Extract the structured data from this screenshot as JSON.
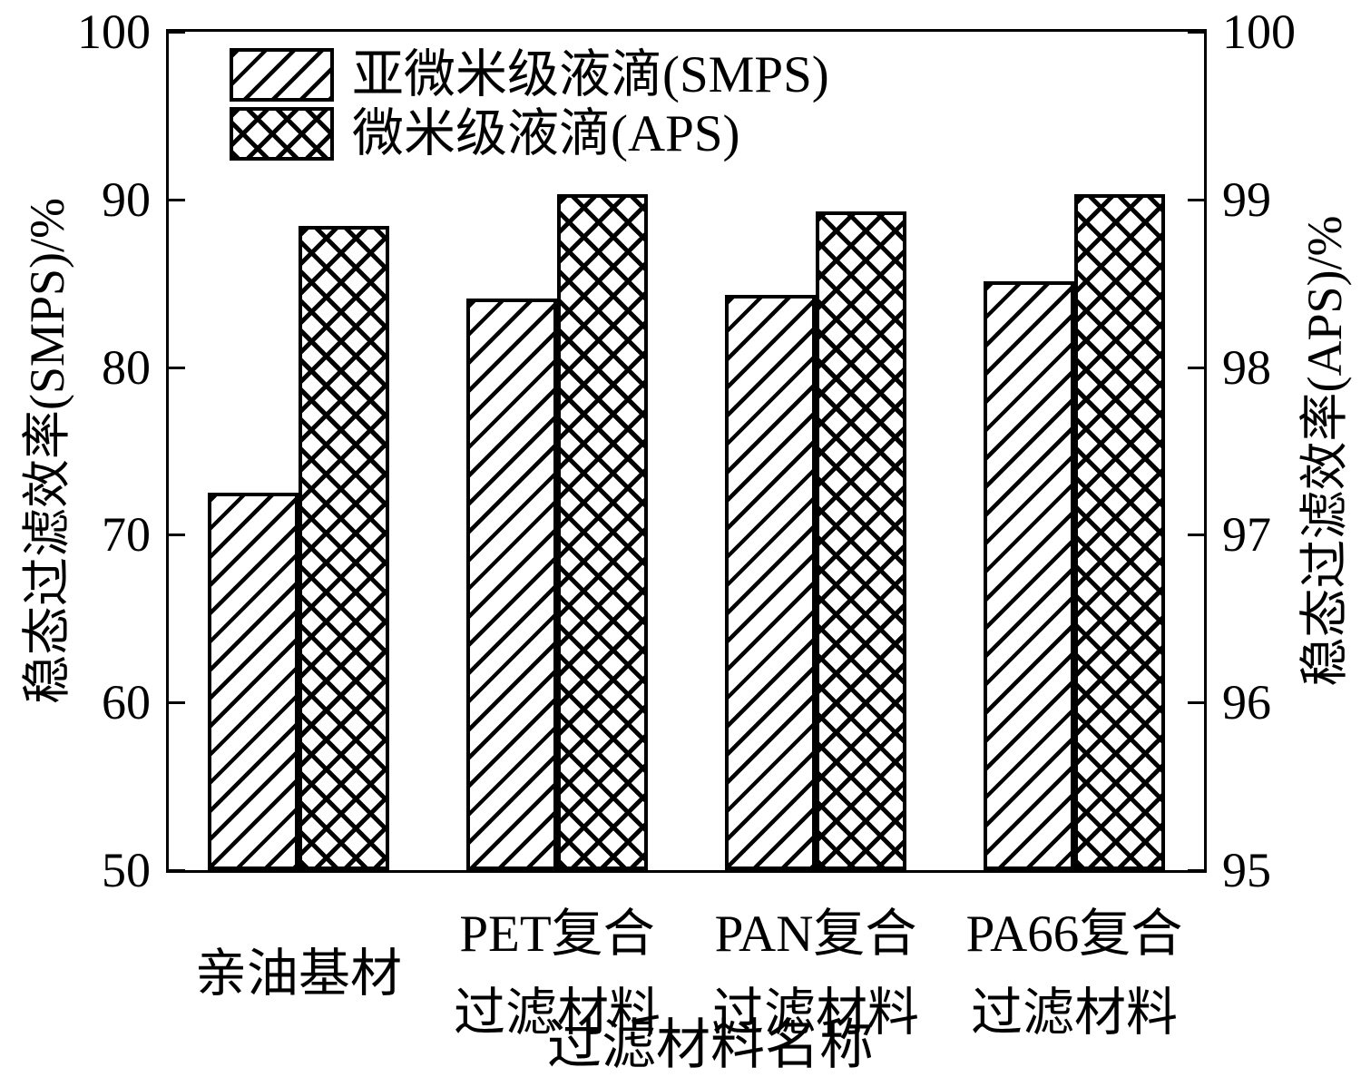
{
  "figure": {
    "background": "#ffffff",
    "ink_color": "#000000"
  },
  "chart_data": {
    "type": "bar",
    "title": "",
    "xlabel": "过滤材料名称",
    "categories": [
      "亲油基材",
      "PET复合过滤材料",
      "PAN复合过滤材料",
      "PA66复合过滤材料"
    ],
    "category_label_lines": [
      [
        "亲油基材"
      ],
      [
        "PET复合",
        "过滤材料"
      ],
      [
        "PAN复合",
        "过滤材料"
      ],
      [
        "PA66复合",
        "过滤材料"
      ]
    ],
    "series": [
      {
        "name": "亚微米级液滴(SMPS)",
        "axis": "left",
        "hatch": "diagonal",
        "values": [
          72.5,
          84.1,
          84.3,
          85.1
        ]
      },
      {
        "name": "微米级液滴(APS)",
        "axis": "right",
        "hatch": "cross",
        "values": [
          98.84,
          99.03,
          98.93,
          99.03
        ]
      }
    ],
    "left_axis": {
      "label": "稳态过滤效率(SMPS)/%",
      "min": 50,
      "max": 100,
      "ticks": [
        50,
        60,
        70,
        80,
        90,
        100
      ]
    },
    "right_axis": {
      "label": "稳态过滤效率(APS)/%",
      "min": 95,
      "max": 100,
      "ticks": [
        95,
        96,
        97,
        98,
        99,
        100
      ]
    },
    "legend_position": "top-left-inside",
    "grid": false
  }
}
